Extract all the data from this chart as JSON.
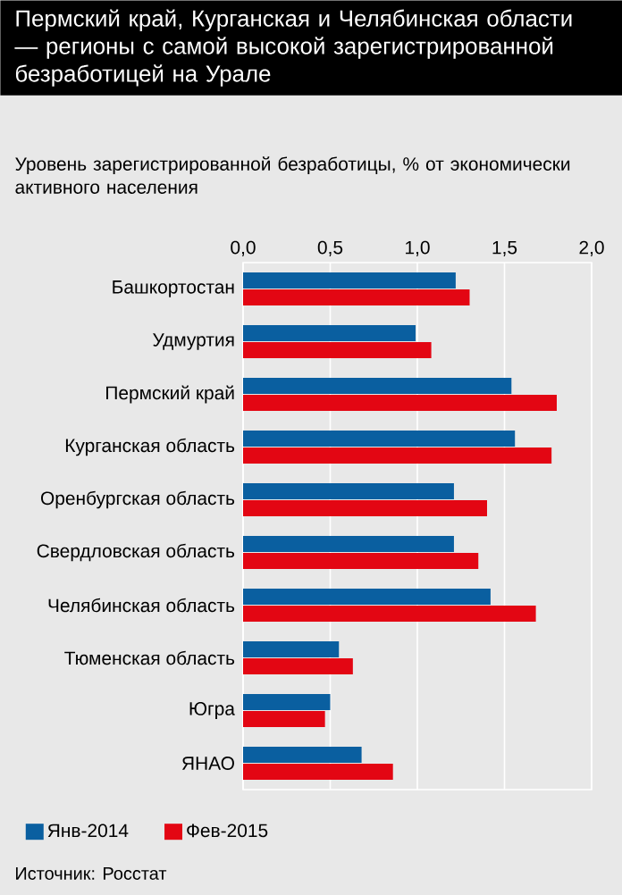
{
  "chart_data": {
    "type": "bar",
    "orientation": "horizontal",
    "title": "Пермский край, Курганская и Челябинская области — регионы с самой высокой зарегистрированной безработицей на Урале",
    "xlabel": "Уровень зарегистрированной безработицы, % от экономически активного населения",
    "categories": [
      "Башкортостан",
      "Удмуртия",
      "Пермский край",
      "Курганская область",
      "Оренбургская область",
      "Свердловская область",
      "Челябинская область",
      "Тюменская область",
      "Югра",
      "ЯНАО"
    ],
    "series": [
      {
        "name": "Янв-2014",
        "color": "#0a5fa0",
        "values": [
          1.22,
          0.99,
          1.54,
          1.56,
          1.21,
          1.21,
          1.42,
          0.55,
          0.5,
          0.68
        ]
      },
      {
        "name": "Фев-2015",
        "color": "#e30613",
        "values": [
          1.3,
          1.08,
          1.8,
          1.77,
          1.4,
          1.35,
          1.68,
          0.63,
          0.47,
          0.86
        ]
      }
    ],
    "xlim": [
      0,
      2
    ],
    "xticks": [
      {
        "value": 0,
        "label": "0,0"
      },
      {
        "value": 0.5,
        "label": "0,5"
      },
      {
        "value": 1,
        "label": "1,0"
      },
      {
        "value": 1.5,
        "label": "1,5"
      },
      {
        "value": 2,
        "label": "2,0"
      }
    ],
    "grid": "x",
    "legend": "bottom",
    "annotations": [
      "Источник: Росстат"
    ]
  }
}
